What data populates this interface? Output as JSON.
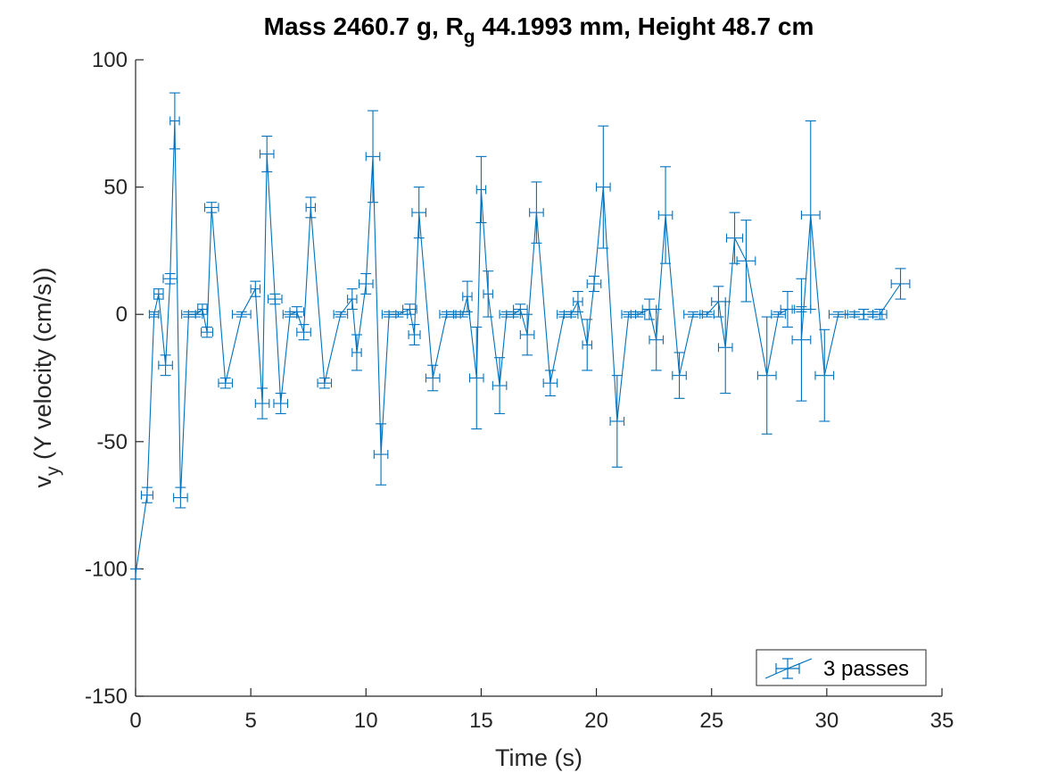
{
  "chart_data": {
    "type": "line",
    "title": {
      "prefix": "Mass 2460.7 g, R",
      "subscript": "g",
      "suffix": " 44.1993 mm,  Height 48.7 cm"
    },
    "xlabel": "Time (s)",
    "ylabel": {
      "prefix": "v",
      "subscript": "y",
      "suffix": " (Y velocity (cm/s))"
    },
    "xlim": [
      0,
      35
    ],
    "ylim": [
      -150,
      100
    ],
    "xticks": [
      0,
      5,
      10,
      15,
      20,
      25,
      30,
      35
    ],
    "yticks": [
      -150,
      -100,
      -50,
      0,
      50,
      100
    ],
    "grid": false,
    "legend_position": "bottom-right",
    "series_color": "#0072BD",
    "series": [
      {
        "name": "3 passes",
        "points": [
          [
            0.0,
            -102,
            0,
            2
          ],
          [
            0.5,
            -71,
            0.25,
            3
          ],
          [
            0.8,
            0,
            0.2,
            1
          ],
          [
            1.0,
            8,
            0.2,
            2
          ],
          [
            1.3,
            -20,
            0.3,
            4
          ],
          [
            1.5,
            14,
            0.3,
            2
          ],
          [
            1.7,
            76,
            0.2,
            11
          ],
          [
            1.95,
            -72,
            0.3,
            4
          ],
          [
            2.3,
            0,
            0.3,
            1
          ],
          [
            2.6,
            0,
            0.3,
            1
          ],
          [
            2.9,
            2,
            0.2,
            2
          ],
          [
            3.1,
            -7,
            0.25,
            2
          ],
          [
            3.3,
            42,
            0.3,
            2
          ],
          [
            3.9,
            -27,
            0.3,
            2
          ],
          [
            4.6,
            0,
            0.4,
            1
          ],
          [
            5.2,
            10,
            0.2,
            3
          ],
          [
            5.5,
            -35,
            0.3,
            6
          ],
          [
            5.7,
            63,
            0.3,
            7
          ],
          [
            6.05,
            6,
            0.3,
            2
          ],
          [
            6.3,
            -35,
            0.3,
            4
          ],
          [
            6.7,
            0,
            0.3,
            1
          ],
          [
            7.0,
            1,
            0.3,
            2
          ],
          [
            7.3,
            -7,
            0.3,
            3
          ],
          [
            7.6,
            42,
            0.2,
            4
          ],
          [
            8.2,
            -27,
            0.3,
            2
          ],
          [
            8.9,
            0,
            0.3,
            1
          ],
          [
            9.4,
            6,
            0.2,
            4
          ],
          [
            9.6,
            -15,
            0.2,
            7
          ],
          [
            10.0,
            12,
            0.3,
            4
          ],
          [
            10.3,
            62,
            0.3,
            18
          ],
          [
            10.65,
            -55,
            0.3,
            12
          ],
          [
            11.0,
            0,
            0.3,
            1
          ],
          [
            11.4,
            0,
            0.4,
            1
          ],
          [
            11.9,
            2,
            0.3,
            2
          ],
          [
            12.1,
            -8,
            0.25,
            4
          ],
          [
            12.3,
            40,
            0.3,
            10
          ],
          [
            12.9,
            -25,
            0.3,
            5
          ],
          [
            13.5,
            0,
            0.3,
            1
          ],
          [
            13.8,
            0,
            0.3,
            1
          ],
          [
            14.2,
            0,
            0.3,
            1
          ],
          [
            14.4,
            7,
            0.2,
            6
          ],
          [
            14.8,
            -25,
            0.3,
            20
          ],
          [
            15.0,
            49,
            0.2,
            13
          ],
          [
            15.3,
            8,
            0.2,
            9
          ],
          [
            15.8,
            -28,
            0.3,
            11
          ],
          [
            16.1,
            0,
            0.3,
            1
          ],
          [
            16.4,
            0,
            0.3,
            1
          ],
          [
            16.7,
            2,
            0.3,
            2
          ],
          [
            17.0,
            -8,
            0.3,
            8
          ],
          [
            17.4,
            40,
            0.3,
            12
          ],
          [
            18.0,
            -27,
            0.3,
            5
          ],
          [
            18.6,
            0,
            0.3,
            1
          ],
          [
            18.9,
            0,
            0.3,
            1
          ],
          [
            19.2,
            5,
            0.2,
            4
          ],
          [
            19.6,
            -12,
            0.2,
            10
          ],
          [
            19.9,
            12,
            0.3,
            3
          ],
          [
            20.3,
            50,
            0.3,
            24
          ],
          [
            20.9,
            -42,
            0.3,
            18
          ],
          [
            21.4,
            0,
            0.3,
            1
          ],
          [
            21.8,
            0,
            0.3,
            1
          ],
          [
            22.3,
            2,
            0.3,
            4
          ],
          [
            22.6,
            -10,
            0.3,
            12
          ],
          [
            23.0,
            39,
            0.3,
            19
          ],
          [
            23.6,
            -24,
            0.3,
            9
          ],
          [
            24.2,
            0,
            0.4,
            1
          ],
          [
            24.8,
            0,
            0.3,
            1
          ],
          [
            25.3,
            5,
            0.3,
            6
          ],
          [
            25.6,
            -13,
            0.3,
            18
          ],
          [
            26.0,
            30,
            0.35,
            10
          ],
          [
            26.5,
            21,
            0.4,
            16
          ],
          [
            27.4,
            -24,
            0.4,
            23
          ],
          [
            27.9,
            0,
            0.3,
            1
          ],
          [
            28.3,
            2,
            0.3,
            7
          ],
          [
            28.9,
            2,
            0.4,
            1
          ],
          [
            28.9,
            -10,
            0.4,
            24
          ],
          [
            29.3,
            39,
            0.4,
            37
          ],
          [
            29.9,
            -24,
            0.4,
            18
          ],
          [
            30.5,
            0,
            0.4,
            1
          ],
          [
            31.2,
            0,
            0.4,
            1
          ],
          [
            31.6,
            0,
            0.4,
            2
          ],
          [
            32.0,
            0,
            0.4,
            1
          ],
          [
            32.3,
            0,
            0.3,
            2
          ],
          [
            33.2,
            12,
            0.4,
            6
          ]
        ]
      }
    ]
  }
}
